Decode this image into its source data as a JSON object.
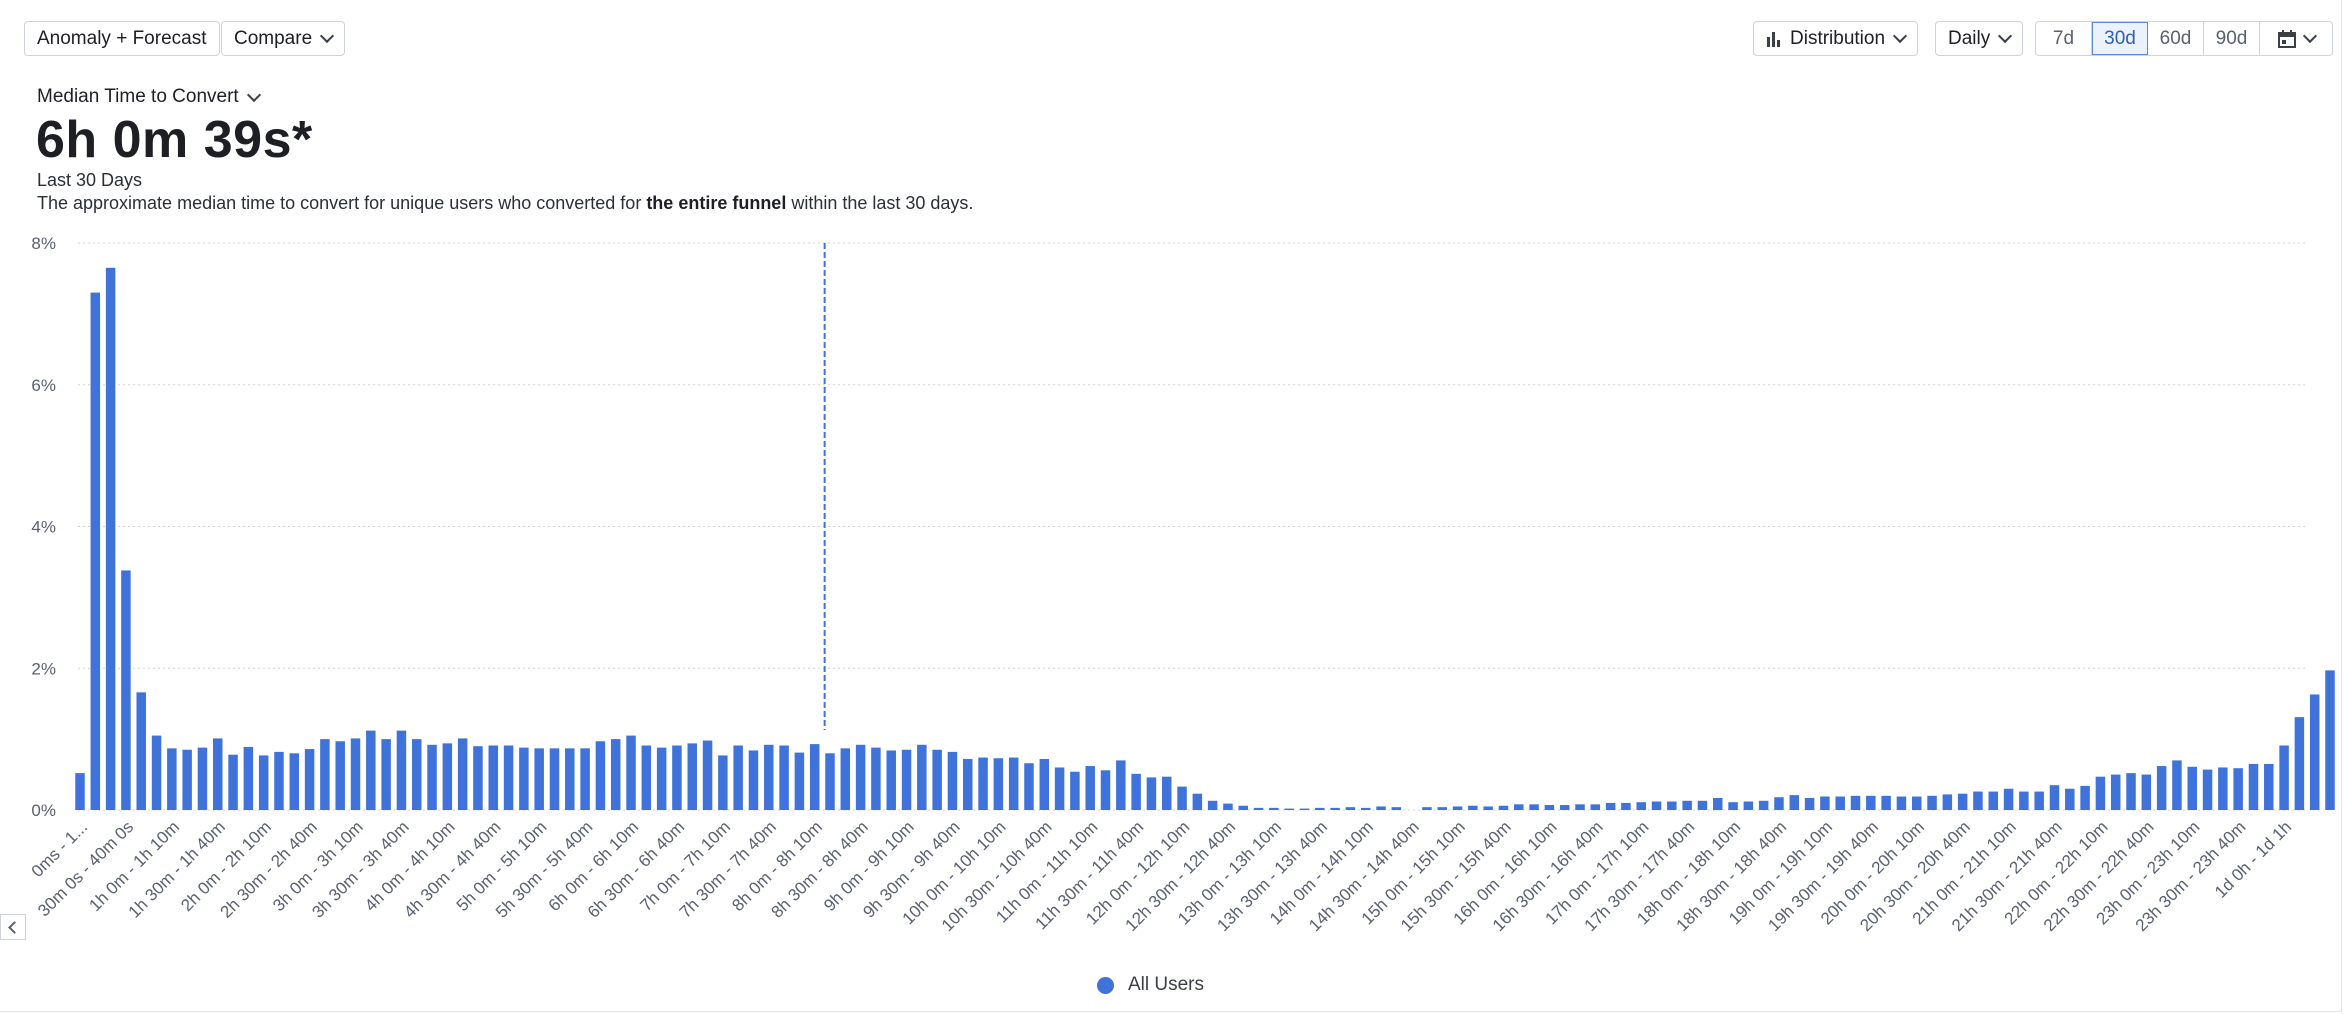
{
  "toolbar": {
    "anomaly_label": "Anomaly + Forecast",
    "compare_label": "Compare",
    "distribution_label": "Distribution",
    "interval_label": "Daily",
    "ranges": [
      "7d",
      "30d",
      "60d",
      "90d"
    ],
    "active_range": "30d"
  },
  "metric": {
    "selector_label": "Median Time to Convert",
    "value": "6h 0m 39s*",
    "period": "Last 30 Days",
    "description_pre": "The approximate median time to convert for unique users who converted for ",
    "description_bold": "the entire funnel",
    "description_post": " within the last 30 days."
  },
  "legend": {
    "label": "All Users",
    "color": "#3f73d9"
  },
  "chart_data": {
    "type": "bar",
    "ylim": [
      0,
      8
    ],
    "yticks": [
      "0%",
      "2%",
      "4%",
      "6%",
      "8%"
    ],
    "median_marker_bin": 48,
    "tick_labels": [
      "0ms - 1...",
      "30m 0s - 40m 0s",
      "1h 0m - 1h 10m",
      "1h 30m - 1h 40m",
      "2h 0m - 2h 10m",
      "2h 30m - 2h 40m",
      "3h 0m - 3h 10m",
      "3h 30m - 3h 40m",
      "4h 0m - 4h 10m",
      "4h 30m - 4h 40m",
      "5h 0m - 5h 10m",
      "5h 30m - 5h 40m",
      "6h 0m - 6h 10m",
      "6h 30m - 6h 40m",
      "7h 0m - 7h 10m",
      "7h 30m - 7h 40m",
      "8h 0m - 8h 10m",
      "8h 30m - 8h 40m",
      "9h 0m - 9h 10m",
      "9h 30m - 9h 40m",
      "10h 0m - 10h 10m",
      "10h 30m - 10h 40m",
      "11h 0m - 11h 10m",
      "11h 30m - 11h 40m",
      "12h 0m - 12h 10m",
      "12h 30m - 12h 40m",
      "13h 0m - 13h 10m",
      "13h 30m - 13h 40m",
      "14h 0m - 14h 10m",
      "14h 30m - 14h 40m",
      "15h 0m - 15h 10m",
      "15h 30m - 15h 40m",
      "16h 0m - 16h 10m",
      "16h 30m - 16h 40m",
      "17h 0m - 17h 10m",
      "17h 30m - 17h 40m",
      "18h 0m - 18h 10m",
      "18h 30m - 18h 40m",
      "19h 0m - 19h 10m",
      "19h 30m - 19h 40m",
      "20h 0m - 20h 10m",
      "20h 30m - 20h 40m",
      "21h 0m - 21h 10m",
      "21h 30m - 21h 40m",
      "22h 0m - 22h 10m",
      "22h 30m - 22h 40m",
      "23h 0m - 23h 10m",
      "23h 30m - 23h 40m",
      "1d 0h - 1d 1h"
    ],
    "values": [
      0.52,
      7.3,
      7.65,
      3.38,
      1.66,
      1.05,
      0.87,
      0.85,
      0.88,
      1.01,
      0.78,
      0.89,
      0.77,
      0.82,
      0.8,
      0.86,
      1.0,
      0.97,
      1.01,
      1.12,
      1.0,
      1.12,
      1.0,
      0.92,
      0.94,
      1.01,
      0.9,
      0.91,
      0.91,
      0.88,
      0.87,
      0.87,
      0.87,
      0.87,
      0.97,
      1.0,
      1.05,
      0.91,
      0.88,
      0.91,
      0.94,
      0.98,
      0.77,
      0.91,
      0.84,
      0.92,
      0.91,
      0.81,
      0.93,
      0.8,
      0.87,
      0.92,
      0.88,
      0.84,
      0.85,
      0.92,
      0.85,
      0.82,
      0.72,
      0.74,
      0.73,
      0.74,
      0.66,
      0.72,
      0.6,
      0.54,
      0.62,
      0.56,
      0.7,
      0.51,
      0.46,
      0.47,
      0.33,
      0.23,
      0.13,
      0.09,
      0.06,
      0.03,
      0.03,
      0.02,
      0.02,
      0.03,
      0.03,
      0.04,
      0.03,
      0.05,
      0.04,
      0.0,
      0.04,
      0.04,
      0.05,
      0.06,
      0.05,
      0.06,
      0.08,
      0.08,
      0.07,
      0.07,
      0.08,
      0.08,
      0.1,
      0.1,
      0.11,
      0.12,
      0.12,
      0.13,
      0.13,
      0.17,
      0.11,
      0.12,
      0.13,
      0.18,
      0.21,
      0.17,
      0.19,
      0.19,
      0.2,
      0.2,
      0.2,
      0.19,
      0.19,
      0.2,
      0.22,
      0.23,
      0.26,
      0.26,
      0.3,
      0.26,
      0.26,
      0.35,
      0.3,
      0.34,
      0.47,
      0.5,
      0.52,
      0.5,
      0.62,
      0.7,
      0.61,
      0.57,
      0.6,
      0.59,
      0.65,
      0.65,
      0.91,
      1.31,
      1.63,
      1.97
    ]
  }
}
